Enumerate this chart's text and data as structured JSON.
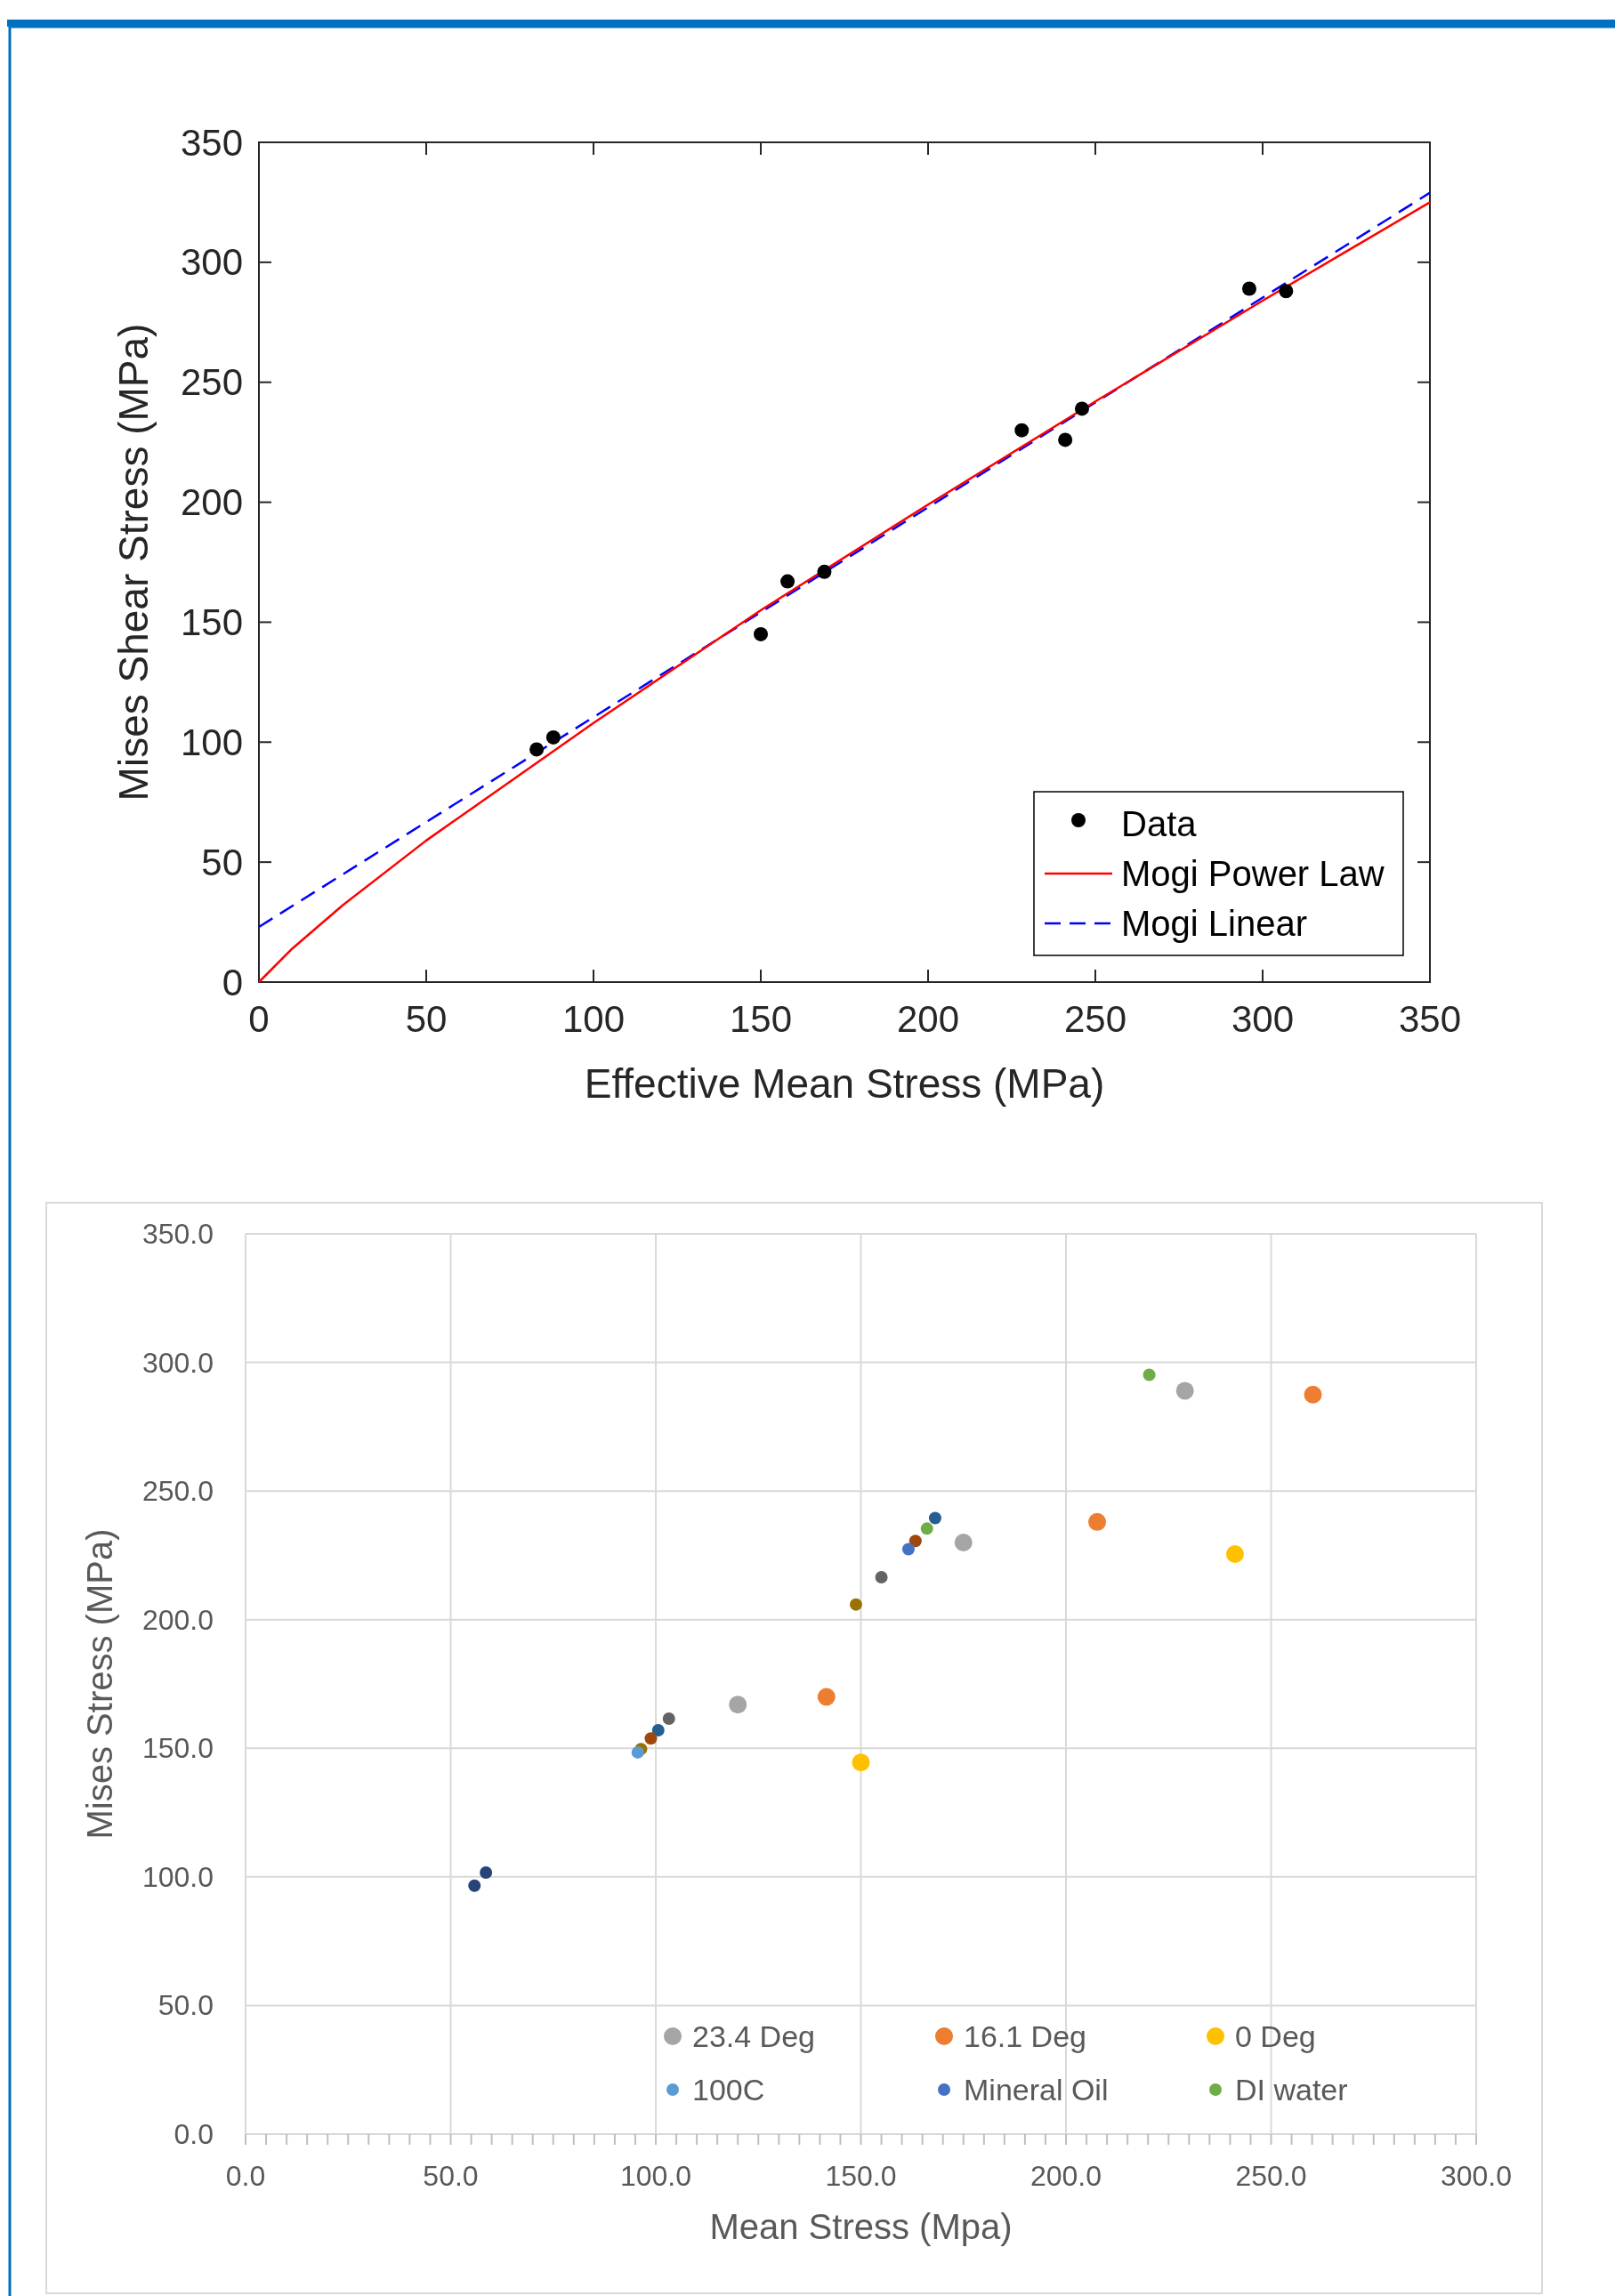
{
  "chart_data": [
    {
      "type": "scatter",
      "xlabel": "Effective Mean Stress (MPa)",
      "ylabel": "Mises Shear Stress (MPa)",
      "xlim": [
        0,
        350
      ],
      "ylim": [
        0,
        350
      ],
      "xticks": [
        0,
        50,
        100,
        150,
        200,
        250,
        300,
        350
      ],
      "yticks": [
        0,
        50,
        100,
        150,
        200,
        250,
        300,
        350
      ],
      "grid": false,
      "legend": "bottom right",
      "series": [
        {
          "name": "Data",
          "type": "scatter",
          "color": "#000000",
          "marker": "circle",
          "x": [
            83,
            88,
            150,
            158,
            169,
            228,
            241,
            246,
            296,
            307
          ],
          "values": [
            97,
            102,
            145,
            167,
            171,
            230,
            226,
            239,
            289,
            288
          ]
        },
        {
          "name": "Mogi Power Law",
          "type": "line",
          "color": "#ff0000",
          "line_style": "solid",
          "x": [
            0,
            10,
            25,
            50,
            100,
            150,
            200,
            250,
            300,
            350
          ],
          "values": [
            0,
            14,
            32,
            59,
            108,
            155,
            199,
            242,
            284,
            325
          ]
        },
        {
          "name": "Mogi Linear",
          "type": "line",
          "color": "#0000ff",
          "line_style": "dashed",
          "x": [
            0,
            350
          ],
          "values": [
            23,
            329
          ]
        }
      ]
    },
    {
      "type": "scatter",
      "xlabel": "Mean Stress (Mpa)",
      "ylabel": "Mises Stress (MPa)",
      "xlim": [
        0,
        300
      ],
      "ylim": [
        0,
        350
      ],
      "grid": true,
      "legend": "bottom right",
      "marker": "circle",
      "xticks": [
        {
          "value": 0,
          "label": "0.0"
        },
        {
          "value": 5,
          "label": null
        },
        {
          "value": 10,
          "label": null
        },
        {
          "value": 15,
          "label": null
        },
        {
          "value": 20,
          "label": null
        },
        {
          "value": 25,
          "label": null
        },
        {
          "value": 30,
          "label": null
        },
        {
          "value": 35,
          "label": null
        },
        {
          "value": 40,
          "label": null
        },
        {
          "value": 45,
          "label": null
        },
        {
          "value": 50,
          "label": "50.0"
        },
        {
          "value": 55,
          "label": null
        },
        {
          "value": 60,
          "label": null
        },
        {
          "value": 65,
          "label": null
        },
        {
          "value": 70,
          "label": null
        },
        {
          "value": 75,
          "label": null
        },
        {
          "value": 80,
          "label": null
        },
        {
          "value": 85,
          "label": null
        },
        {
          "value": 90,
          "label": null
        },
        {
          "value": 95,
          "label": null
        },
        {
          "value": 100,
          "label": "100.0"
        },
        {
          "value": 105,
          "label": null
        },
        {
          "value": 110,
          "label": null
        },
        {
          "value": 115,
          "label": null
        },
        {
          "value": 120,
          "label": null
        },
        {
          "value": 125,
          "label": null
        },
        {
          "value": 130,
          "label": null
        },
        {
          "value": 135,
          "label": null
        },
        {
          "value": 140,
          "label": null
        },
        {
          "value": 145,
          "label": null
        },
        {
          "value": 150,
          "label": "150.0"
        },
        {
          "value": 155,
          "label": null
        },
        {
          "value": 160,
          "label": null
        },
        {
          "value": 165,
          "label": null
        },
        {
          "value": 170,
          "label": null
        },
        {
          "value": 175,
          "label": null
        },
        {
          "value": 180,
          "label": null
        },
        {
          "value": 185,
          "label": null
        },
        {
          "value": 190,
          "label": null
        },
        {
          "value": 195,
          "label": null
        },
        {
          "value": 200,
          "label": "200.0"
        },
        {
          "value": 205,
          "label": null
        },
        {
          "value": 210,
          "label": null
        },
        {
          "value": 215,
          "label": null
        },
        {
          "value": 220,
          "label": null
        },
        {
          "value": 225,
          "label": null
        },
        {
          "value": 230,
          "label": null
        },
        {
          "value": 235,
          "label": null
        },
        {
          "value": 240,
          "label": null
        },
        {
          "value": 245,
          "label": null
        },
        {
          "value": 250,
          "label": "250.0"
        },
        {
          "value": 255,
          "label": null
        },
        {
          "value": 260,
          "label": null
        },
        {
          "value": 265,
          "label": null
        },
        {
          "value": 270,
          "label": null
        },
        {
          "value": 275,
          "label": null
        },
        {
          "value": 280,
          "label": null
        },
        {
          "value": 285,
          "label": null
        },
        {
          "value": 290,
          "label": null
        },
        {
          "value": 295,
          "label": null
        },
        {
          "value": 300,
          "label": "300.0"
        }
      ],
      "yticks": [
        {
          "value": 0,
          "label": "0.0"
        },
        {
          "value": 50,
          "label": "50.0"
        },
        {
          "value": 100,
          "label": "100.0"
        },
        {
          "value": 150,
          "label": "150.0"
        },
        {
          "value": 200,
          "label": "200.0"
        },
        {
          "value": 250,
          "label": "250.0"
        },
        {
          "value": 300,
          "label": "300.0"
        },
        {
          "value": 350,
          "label": "350.0"
        }
      ],
      "series": [
        {
          "name": "23.4 Deg",
          "color": "#a5a5a5",
          "x": [
            120,
            175,
            229
          ],
          "values": [
            167,
            230,
            289
          ]
        },
        {
          "name": "16.1 Deg",
          "color": "#ed7d31",
          "x": [
            141.6,
            207.6,
            260.2
          ],
          "values": [
            170,
            238,
            287.5
          ]
        },
        {
          "name": "0 Deg",
          "color": "#ffc000",
          "x": [
            150,
            241.2
          ],
          "values": [
            144.5,
            225.5
          ]
        },
        {
          "name": "100C",
          "color": "#5b9bd5",
          "x": [
            95.6
          ],
          "values": [
            148.4
          ]
        },
        {
          "name": "Mineral Oil",
          "color": "#4472c4",
          "x": [
            161.6
          ],
          "values": [
            227.4
          ]
        },
        {
          "name": "DI water",
          "color": "#70ad47",
          "x": [
            166.1,
            220.3
          ],
          "values": [
            235.4,
            295.2
          ]
        },
        {
          "color": "#264478",
          "x": [
            55.8,
            58.6
          ],
          "values": [
            96.6,
            101.7
          ]
        },
        {
          "color": "#9e480e",
          "x": [
            98.8,
            163.3
          ],
          "values": [
            153.8,
            230.6
          ]
        },
        {
          "color": "#636363",
          "x": [
            103.2,
            155
          ],
          "values": [
            161.5,
            216.5
          ]
        },
        {
          "color": "#997300",
          "x": [
            96.4,
            148.8
          ],
          "values": [
            149.7,
            205.9
          ]
        },
        {
          "color": "#255e91",
          "x": [
            100.6,
            168.1
          ],
          "values": [
            157,
            239.5
          ]
        }
      ]
    }
  ]
}
